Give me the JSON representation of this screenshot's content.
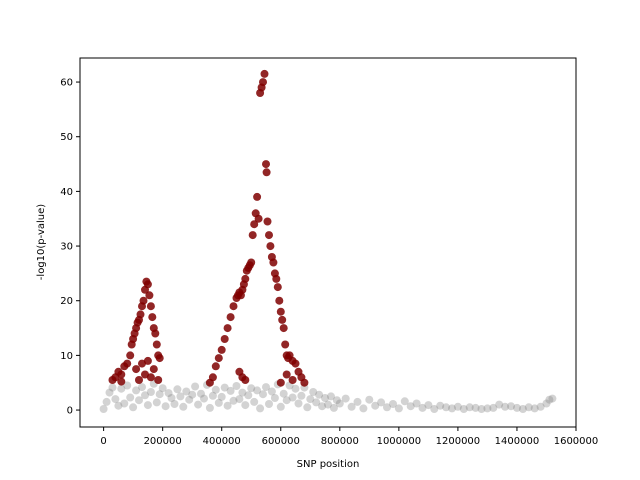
{
  "chart_data": {
    "type": "scatter",
    "title": "",
    "xlabel": "SNP position",
    "ylabel": "-log10(p-value)",
    "xlim": [
      -80000,
      1600000
    ],
    "ylim": [
      -3.1,
      64.4
    ],
    "xticks": [
      0,
      200000,
      400000,
      600000,
      800000,
      1000000,
      1200000,
      1400000,
      1600000
    ],
    "xtick_labels": [
      "0",
      "200000",
      "400000",
      "600000",
      "800000",
      "1000000",
      "1200000",
      "1400000",
      "1600000"
    ],
    "yticks": [
      0,
      10,
      20,
      30,
      40,
      50,
      60
    ],
    "ytick_labels": [
      "0",
      "10",
      "20",
      "30",
      "40",
      "50",
      "60"
    ],
    "grid": false,
    "series": [
      {
        "color": "#808080",
        "opacity": 0.35,
        "description_level": "background SNPs",
        "points": [
          [
            0,
            0.2
          ],
          [
            10000,
            1.5
          ],
          [
            20000,
            3.2
          ],
          [
            30000,
            4.1
          ],
          [
            40000,
            2.0
          ],
          [
            50000,
            0.8
          ],
          [
            60000,
            3.9
          ],
          [
            70000,
            1.2
          ],
          [
            80000,
            4.5
          ],
          [
            90000,
            2.3
          ],
          [
            100000,
            0.5
          ],
          [
            110000,
            3.6
          ],
          [
            120000,
            1.8
          ],
          [
            130000,
            4.2
          ],
          [
            140000,
            2.7
          ],
          [
            150000,
            0.9
          ],
          [
            160000,
            3.3
          ],
          [
            170000,
            4.8
          ],
          [
            180000,
            1.4
          ],
          [
            190000,
            2.9
          ],
          [
            200000,
            4.0
          ],
          [
            210000,
            0.7
          ],
          [
            220000,
            3.1
          ],
          [
            230000,
            2.2
          ],
          [
            240000,
            1.1
          ],
          [
            250000,
            3.8
          ],
          [
            260000,
            2.5
          ],
          [
            270000,
            0.6
          ],
          [
            280000,
            3.4
          ],
          [
            290000,
            1.9
          ],
          [
            300000,
            2.8
          ],
          [
            310000,
            4.3
          ],
          [
            320000,
            1.0
          ],
          [
            330000,
            3.0
          ],
          [
            340000,
            2.1
          ],
          [
            350000,
            4.6
          ],
          [
            360000,
            0.4
          ],
          [
            370000,
            2.6
          ],
          [
            380000,
            3.7
          ],
          [
            390000,
            1.3
          ],
          [
            400000,
            2.4
          ],
          [
            410000,
            4.1
          ],
          [
            420000,
            0.8
          ],
          [
            430000,
            3.5
          ],
          [
            440000,
            1.7
          ],
          [
            450000,
            4.4
          ],
          [
            460000,
            2.0
          ],
          [
            470000,
            3.2
          ],
          [
            480000,
            0.9
          ],
          [
            490000,
            2.7
          ],
          [
            500000,
            4.0
          ],
          [
            510000,
            1.5
          ],
          [
            520000,
            3.6
          ],
          [
            530000,
            0.3
          ],
          [
            540000,
            2.9
          ],
          [
            550000,
            4.2
          ],
          [
            560000,
            1.1
          ],
          [
            570000,
            3.4
          ],
          [
            580000,
            2.2
          ],
          [
            590000,
            4.7
          ],
          [
            600000,
            0.6
          ],
          [
            610000,
            3.0
          ],
          [
            620000,
            1.8
          ],
          [
            630000,
            4.5
          ],
          [
            640000,
            2.3
          ],
          [
            650000,
            3.9
          ],
          [
            660000,
            1.2
          ],
          [
            670000,
            2.6
          ],
          [
            680000,
            4.1
          ],
          [
            690000,
            0.5
          ],
          [
            700000,
            2.0
          ],
          [
            710000,
            3.3
          ],
          [
            720000,
            1.4
          ],
          [
            730000,
            2.8
          ],
          [
            740000,
            0.7
          ],
          [
            750000,
            2.2
          ],
          [
            760000,
            1.0
          ],
          [
            770000,
            2.5
          ],
          [
            780000,
            0.4
          ],
          [
            790000,
            1.8
          ],
          [
            800000,
            1.2
          ],
          [
            820000,
            2.1
          ],
          [
            840000,
            0.6
          ],
          [
            860000,
            1.5
          ],
          [
            880000,
            0.3
          ],
          [
            900000,
            1.9
          ],
          [
            920000,
            0.8
          ],
          [
            940000,
            1.4
          ],
          [
            960000,
            0.5
          ],
          [
            980000,
            1.1
          ],
          [
            1000000,
            0.3
          ],
          [
            1020000,
            1.6
          ],
          [
            1040000,
            0.7
          ],
          [
            1060000,
            1.2
          ],
          [
            1080000,
            0.4
          ],
          [
            1100000,
            0.9
          ],
          [
            1120000,
            0.2
          ],
          [
            1140000,
            0.8
          ],
          [
            1160000,
            0.5
          ],
          [
            1180000,
            0.3
          ],
          [
            1200000,
            0.6
          ],
          [
            1220000,
            0.2
          ],
          [
            1240000,
            0.5
          ],
          [
            1260000,
            0.4
          ],
          [
            1280000,
            0.2
          ],
          [
            1300000,
            0.3
          ],
          [
            1320000,
            0.4
          ],
          [
            1340000,
            1.0
          ],
          [
            1360000,
            0.6
          ],
          [
            1380000,
            0.7
          ],
          [
            1400000,
            0.4
          ],
          [
            1420000,
            0.2
          ],
          [
            1440000,
            0.5
          ],
          [
            1460000,
            0.3
          ],
          [
            1480000,
            0.6
          ],
          [
            1500000,
            1.2
          ],
          [
            1510000,
            1.9
          ],
          [
            1520000,
            2.1
          ]
        ]
      },
      {
        "color": "#7f0000",
        "opacity": 0.85,
        "description_level": "significant SNPs",
        "points": [
          [
            30000,
            5.5
          ],
          [
            40000,
            6.0
          ],
          [
            50000,
            7.0
          ],
          [
            60000,
            6.5
          ],
          [
            70000,
            8.0
          ],
          [
            80000,
            8.5
          ],
          [
            90000,
            10.0
          ],
          [
            95000,
            12.0
          ],
          [
            100000,
            13.0
          ],
          [
            105000,
            14.0
          ],
          [
            110000,
            15.0
          ],
          [
            115000,
            16.0
          ],
          [
            120000,
            16.5
          ],
          [
            125000,
            17.5
          ],
          [
            130000,
            19.0
          ],
          [
            135000,
            20.0
          ],
          [
            140000,
            22.0
          ],
          [
            145000,
            23.5
          ],
          [
            150000,
            23.0
          ],
          [
            155000,
            21.0
          ],
          [
            160000,
            19.0
          ],
          [
            165000,
            17.0
          ],
          [
            170000,
            15.0
          ],
          [
            175000,
            14.0
          ],
          [
            180000,
            12.0
          ],
          [
            185000,
            10.0
          ],
          [
            190000,
            9.5
          ],
          [
            120000,
            5.5
          ],
          [
            140000,
            6.5
          ],
          [
            160000,
            6.0
          ],
          [
            60000,
            5.2
          ],
          [
            110000,
            7.5
          ],
          [
            130000,
            8.5
          ],
          [
            150000,
            9.0
          ],
          [
            170000,
            7.5
          ],
          [
            185000,
            5.5
          ],
          [
            360000,
            5.0
          ],
          [
            370000,
            6.0
          ],
          [
            380000,
            8.0
          ],
          [
            390000,
            9.5
          ],
          [
            400000,
            11.0
          ],
          [
            410000,
            13.0
          ],
          [
            420000,
            15.0
          ],
          [
            430000,
            17.0
          ],
          [
            440000,
            19.0
          ],
          [
            450000,
            20.5
          ],
          [
            455000,
            21.0
          ],
          [
            460000,
            21.5
          ],
          [
            465000,
            21.0
          ],
          [
            470000,
            22.0
          ],
          [
            475000,
            23.0
          ],
          [
            480000,
            24.0
          ],
          [
            485000,
            25.5
          ],
          [
            490000,
            26.0
          ],
          [
            495000,
            26.5
          ],
          [
            500000,
            27.0
          ],
          [
            505000,
            32.0
          ],
          [
            510000,
            34.0
          ],
          [
            515000,
            36.0
          ],
          [
            520000,
            39.0
          ],
          [
            525000,
            35.0
          ],
          [
            530000,
            58.0
          ],
          [
            535000,
            59.0
          ],
          [
            540000,
            60.0
          ],
          [
            545000,
            61.5
          ],
          [
            550000,
            45.0
          ],
          [
            552000,
            43.5
          ],
          [
            555000,
            34.5
          ],
          [
            560000,
            32.0
          ],
          [
            565000,
            30.0
          ],
          [
            570000,
            28.0
          ],
          [
            575000,
            27.0
          ],
          [
            580000,
            25.0
          ],
          [
            585000,
            24.0
          ],
          [
            590000,
            22.5
          ],
          [
            595000,
            20.0
          ],
          [
            600000,
            18.0
          ],
          [
            605000,
            16.5
          ],
          [
            610000,
            15.0
          ],
          [
            615000,
            12.0
          ],
          [
            620000,
            10.0
          ],
          [
            625000,
            9.5
          ],
          [
            630000,
            10.0
          ],
          [
            640000,
            9.0
          ],
          [
            650000,
            8.5
          ],
          [
            660000,
            7.0
          ],
          [
            670000,
            6.0
          ],
          [
            680000,
            5.0
          ],
          [
            460000,
            7.0
          ],
          [
            470000,
            6.0
          ],
          [
            480000,
            5.5
          ],
          [
            620000,
            6.5
          ],
          [
            640000,
            5.5
          ],
          [
            600000,
            5.0
          ]
        ]
      }
    ]
  }
}
